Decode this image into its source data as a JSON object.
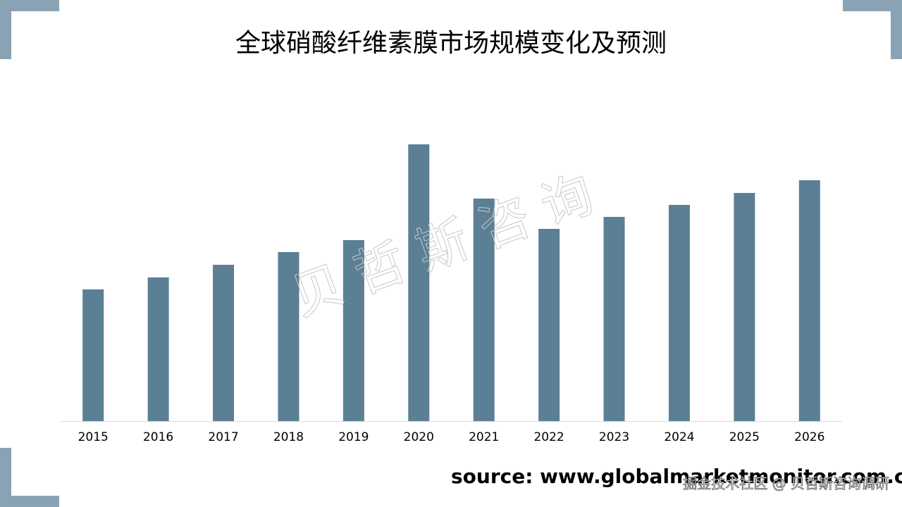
{
  "chart_data": {
    "type": "bar",
    "title": "全球硝酸纤维素膜市场规模变化及预测",
    "categories": [
      "2015",
      "2016",
      "2017",
      "2018",
      "2019",
      "2020",
      "2021",
      "2022",
      "2023",
      "2024",
      "2025",
      "2026"
    ],
    "values": [
      187,
      204,
      222,
      240,
      257,
      393,
      316,
      273,
      290,
      307,
      324,
      342
    ],
    "color": "#5b7f95",
    "ylim": [
      0,
      420
    ],
    "source": "source: www.globalmarketmonitor.com.cn",
    "watermark": "贝哲斯咨询",
    "footer_watermark": "掘金技术社区 @ 贝哲斯咨询调研"
  }
}
